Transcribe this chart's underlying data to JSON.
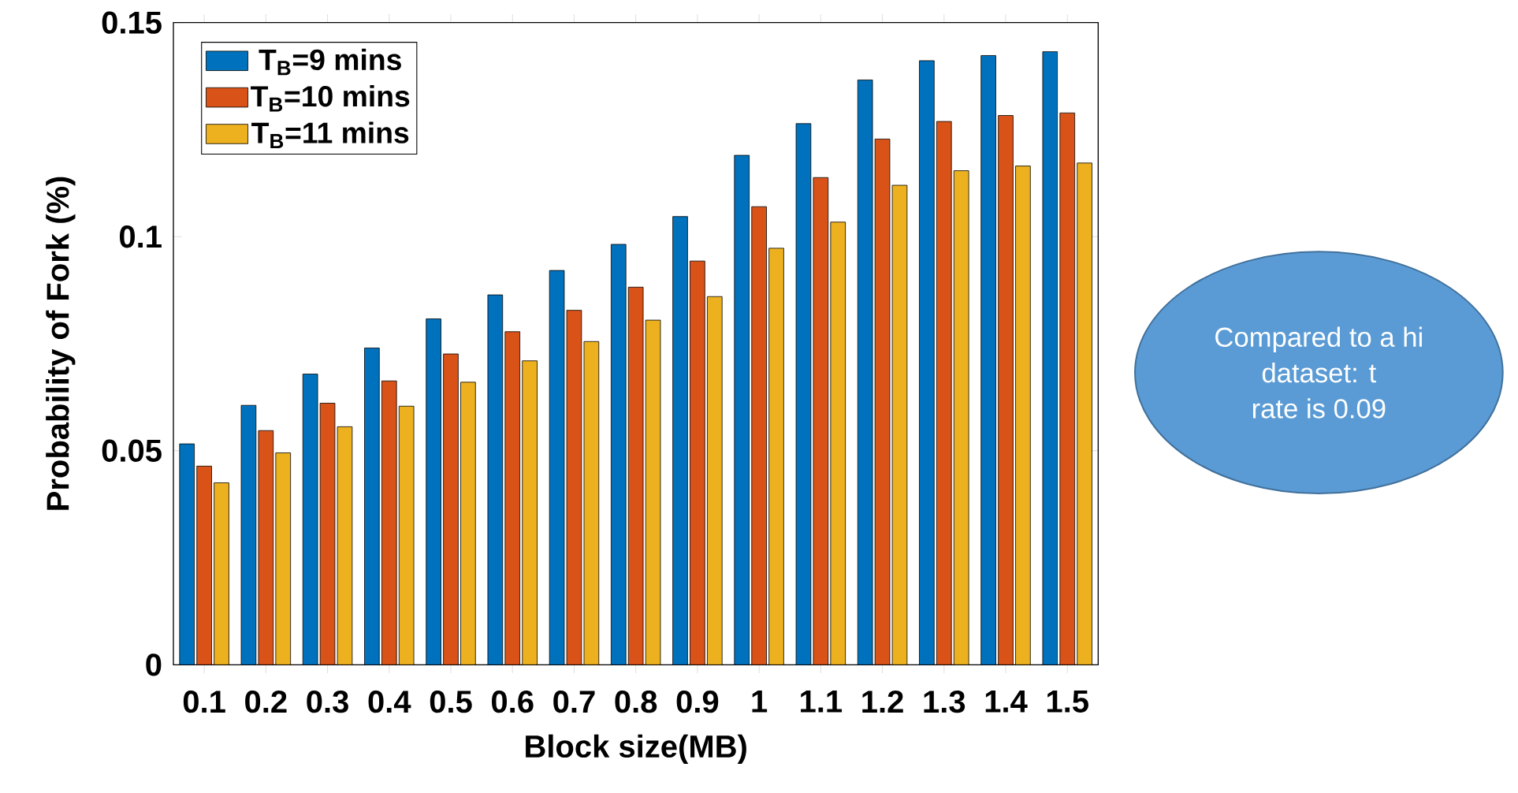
{
  "chart_data": {
    "type": "bar",
    "xlabel": "Block size(MB)",
    "ylabel": "Probability of Fork (%)",
    "categories": [
      "0.1",
      "0.2",
      "0.3",
      "0.4",
      "0.5",
      "0.6",
      "0.7",
      "0.8",
      "0.9",
      "1",
      "1.1",
      "1.2",
      "1.3",
      "1.4",
      "1.5"
    ],
    "series": [
      {
        "name": "T$_{B}$=9 mins",
        "color": "#0072bd",
        "values": [
          0.0516,
          0.0606,
          0.0679,
          0.074,
          0.0808,
          0.0864,
          0.0921,
          0.0982,
          0.1047,
          0.119,
          0.1264,
          0.1366,
          0.1411,
          0.1423,
          0.1432
        ]
      },
      {
        "name": "T$_{B}$=10 mins",
        "color": "#d95319",
        "values": [
          0.0464,
          0.0547,
          0.0611,
          0.0663,
          0.0726,
          0.0778,
          0.0828,
          0.0882,
          0.0943,
          0.107,
          0.1138,
          0.1228,
          0.1269,
          0.1283,
          0.1289
        ]
      },
      {
        "name": "T$_{B}$=11 mins",
        "color": "#edb120",
        "values": [
          0.0425,
          0.0495,
          0.0556,
          0.0604,
          0.066,
          0.071,
          0.0755,
          0.0805,
          0.086,
          0.0973,
          0.1034,
          0.112,
          0.1154,
          0.1165,
          0.1172
        ]
      }
    ],
    "ylim": [
      0,
      0.15
    ],
    "yticks": [
      0,
      0.05,
      0.1,
      0.15
    ],
    "legend": "top left",
    "grid": false,
    "annotations": [
      "Compared to a hi",
      "dataset: t",
      "rate is 0.09"
    ]
  }
}
